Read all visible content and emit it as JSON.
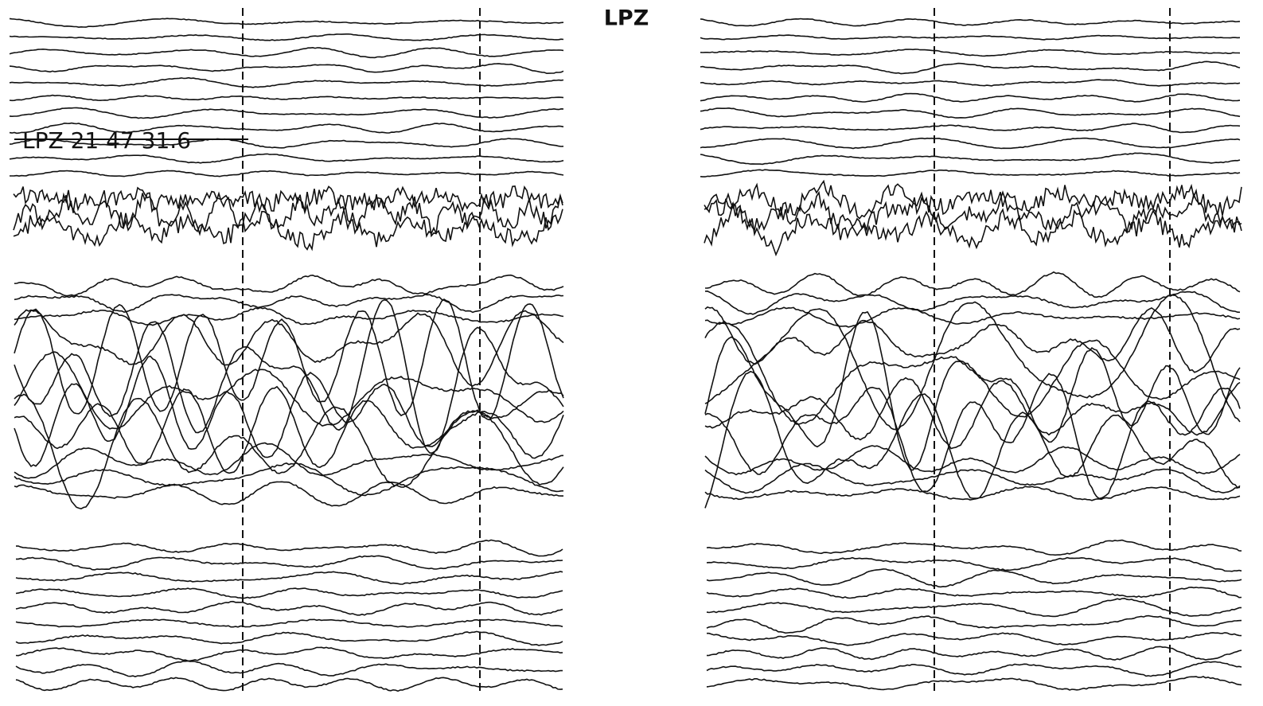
{
  "header": {
    "title": "LPZ"
  },
  "annotation": {
    "label": "LPZ 21 47 31.6"
  }
}
